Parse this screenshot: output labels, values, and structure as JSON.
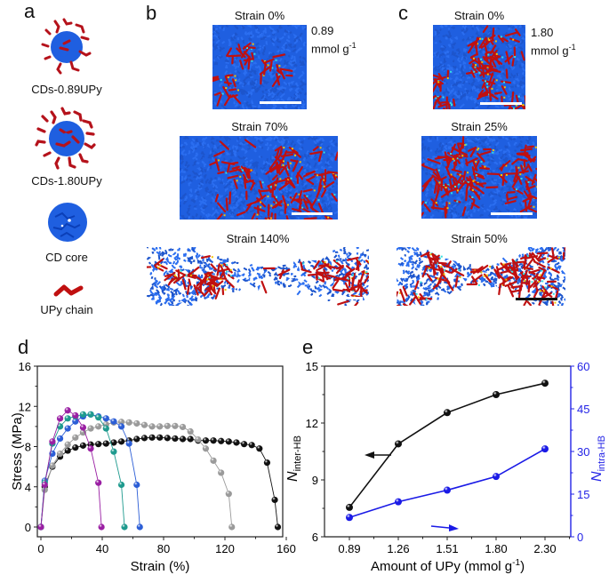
{
  "panels": {
    "a": {
      "letter": "a",
      "items": [
        {
          "label": "CDs-0.89UPy",
          "icon": "cd-upy-low-icon"
        },
        {
          "label": "CDs-1.80UPy",
          "icon": "cd-upy-high-icon"
        },
        {
          "label": "CD core",
          "icon": "cd-core-icon"
        },
        {
          "label": "UPy chain",
          "icon": "upy-chain-icon"
        }
      ]
    },
    "b": {
      "letter": "b",
      "concentration_value": "0.89",
      "concentration_unit": "mmol g",
      "concentration_exp": "-1",
      "snapshots": [
        {
          "label": "Strain 0%"
        },
        {
          "label": "Strain 70%"
        },
        {
          "label": "Strain 140%"
        }
      ]
    },
    "c": {
      "letter": "c",
      "concentration_value": "1.80",
      "concentration_unit": "mmol g",
      "concentration_exp": "-1",
      "snapshots": [
        {
          "label": "Strain 0%"
        },
        {
          "label": "Strain 25%"
        },
        {
          "label": "Strain 50%"
        }
      ]
    },
    "d": {
      "letter": "d"
    },
    "e": {
      "letter": "e"
    }
  },
  "colors": {
    "cd_blue": "#1f5fe0",
    "upy_red": "#c01010",
    "hb_yellow": "#f5c400",
    "hb_cyan": "#35e0e0",
    "axis_right_blue": "#2323e6"
  },
  "chart_data": [
    {
      "id": "d",
      "type": "line",
      "title": "",
      "xlabel": "Strain (%)",
      "ylabel": "Stress (MPa)",
      "xlim": [
        -2,
        160
      ],
      "ylim": [
        -1,
        16
      ],
      "xticks": [
        0,
        40,
        80,
        120,
        160
      ],
      "yticks": [
        0,
        4,
        8,
        12,
        16
      ],
      "grid": false,
      "legend": "none",
      "series": [
        {
          "name": "black",
          "color": "#111111",
          "x": [
            0,
            2.5,
            7.5,
            12.5,
            17.5,
            22.5,
            27.5,
            32.5,
            37.5,
            42.5,
            47.5,
            52.5,
            57.5,
            62.5,
            67.5,
            72.5,
            77.5,
            82.5,
            87.5,
            92.5,
            97.5,
            102.5,
            107.5,
            112.5,
            117.5,
            122.5,
            127.5,
            132.5,
            137.5,
            142.5,
            147.5,
            152.5,
            154.5
          ],
          "y": [
            0,
            4.0,
            6.0,
            7.0,
            7.6,
            7.9,
            8.1,
            8.2,
            8.25,
            8.3,
            8.4,
            8.5,
            8.6,
            8.75,
            8.85,
            8.9,
            8.9,
            8.85,
            8.8,
            8.75,
            8.75,
            8.6,
            8.6,
            8.6,
            8.55,
            8.5,
            8.4,
            8.25,
            8.15,
            7.8,
            6.4,
            2.7,
            0
          ]
        },
        {
          "name": "gray",
          "color": "#9a9a9a",
          "x": [
            0,
            2.5,
            7.5,
            12.5,
            17.5,
            22.5,
            27.5,
            32.5,
            37.5,
            42.5,
            47.5,
            52.5,
            57.5,
            62.5,
            67.5,
            72.5,
            77.5,
            82.5,
            87.5,
            92.5,
            97.5,
            102.5,
            107.5,
            112.5,
            117.5,
            122.5,
            124.5
          ],
          "y": [
            0,
            3.7,
            6.1,
            7.3,
            8.2,
            8.9,
            9.4,
            9.8,
            10.0,
            10.2,
            10.4,
            10.45,
            10.4,
            10.3,
            10.15,
            10.0,
            10.0,
            10.05,
            10.05,
            9.95,
            9.5,
            8.7,
            7.8,
            6.6,
            5.4,
            3.3,
            0
          ]
        },
        {
          "name": "blue",
          "color": "#2c5ed6",
          "x": [
            0,
            2.5,
            7.5,
            12.5,
            17.5,
            22.5,
            27.5,
            32.5,
            37.5,
            42.5,
            47.5,
            52.5,
            57.5,
            62.5,
            64.5
          ],
          "y": [
            0,
            4.6,
            7.3,
            8.8,
            9.8,
            10.5,
            11.0,
            11.2,
            11.0,
            10.8,
            10.5,
            10.0,
            8.3,
            4.2,
            0
          ]
        },
        {
          "name": "teal",
          "color": "#1e9a8e",
          "x": [
            0,
            2.5,
            7.5,
            12.5,
            17.5,
            22.5,
            27.5,
            32.5,
            37.5,
            42.5,
            47.5,
            52.5,
            54.5
          ],
          "y": [
            0,
            4.4,
            8.3,
            10.0,
            10.8,
            11.0,
            11.2,
            11.2,
            10.9,
            9.8,
            7.5,
            4.2,
            0
          ]
        },
        {
          "name": "purple",
          "color": "#9a1fa3",
          "x": [
            0,
            2.5,
            7.5,
            12.5,
            17.5,
            22.5,
            27.5,
            32.5,
            37.5,
            39.5
          ],
          "y": [
            0,
            4.2,
            8.5,
            10.8,
            11.6,
            11.1,
            9.9,
            7.8,
            4.4,
            0
          ]
        }
      ]
    },
    {
      "id": "e",
      "type": "line",
      "title": "",
      "xlabel": "Amount of UPy (mmol g",
      "xlabel_sup": "-1",
      "xlabel_tail": ")",
      "ylabel_left": "N",
      "ylabel_left_sub": "inter-HB",
      "ylabel_right": "N",
      "ylabel_right_sub": "intra-HB",
      "categories": [
        "0.89",
        "1.26",
        "1.51",
        "1.80",
        "2.30"
      ],
      "ylim_left": [
        6,
        15
      ],
      "yticks_left": [
        6,
        9,
        12,
        15
      ],
      "ylim_right": [
        0,
        60
      ],
      "yticks_right": [
        0,
        15,
        30,
        45,
        60
      ],
      "grid": false,
      "legend": "none",
      "series": [
        {
          "name": "N_inter-HB",
          "axis": "left",
          "color": "#111111",
          "values": [
            7.55,
            10.9,
            12.55,
            13.5,
            14.1
          ]
        },
        {
          "name": "N_intra-HB",
          "axis": "right",
          "color": "#1a1ae6",
          "values": [
            6.8,
            12.3,
            16.4,
            21.2,
            30.9
          ]
        }
      ],
      "annotations": [
        {
          "type": "arrow",
          "direction": "left",
          "points_to": "left-axis",
          "color": "#111111"
        },
        {
          "type": "arrow",
          "direction": "right",
          "points_to": "right-axis",
          "color": "#1a1ae6"
        }
      ]
    }
  ]
}
